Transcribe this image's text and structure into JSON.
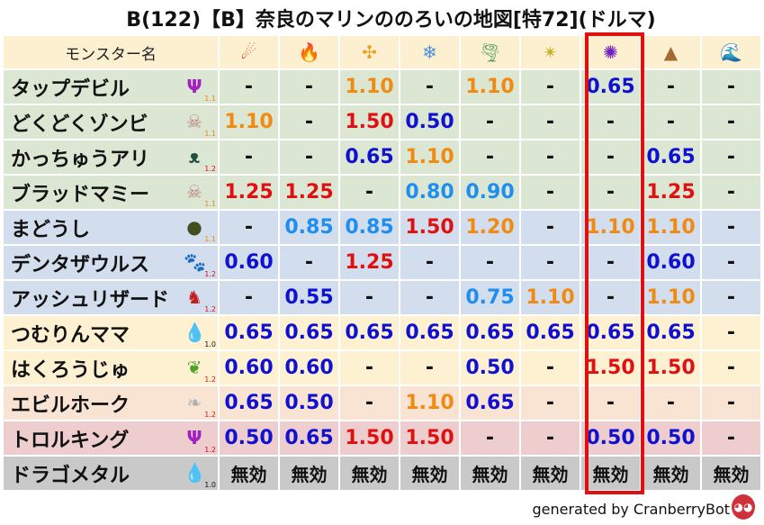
{
  "title": "B(122)【B】奈良のマリンののろいの地図[特72](ドルマ)",
  "header": {
    "name_label": "モンスター名",
    "elements": [
      {
        "icon": "fireball-icon",
        "glyph": "☄",
        "color": "#d83a10"
      },
      {
        "icon": "flame-icon",
        "glyph": "🔥",
        "color": "#e85010"
      },
      {
        "icon": "explosion-icon",
        "glyph": "✣",
        "color": "#f0a020"
      },
      {
        "icon": "ice-icon",
        "glyph": "❄",
        "color": "#4a90e0"
      },
      {
        "icon": "wind-icon",
        "glyph": "🌪",
        "color": "#50a060"
      },
      {
        "icon": "light-icon",
        "glyph": "✴",
        "color": "#c8b020"
      },
      {
        "icon": "dark-icon",
        "glyph": "✺",
        "color": "#7020c0"
      },
      {
        "icon": "earth-icon",
        "glyph": "▲",
        "color": "#a06a30"
      },
      {
        "icon": "water-icon",
        "glyph": "🌊",
        "color": "#2070d0"
      }
    ],
    "highlight_column": 6
  },
  "value_colors": {
    "strong_resist": "#1010d0",
    "resist": "#1e8ef0",
    "weak": "#f08a10",
    "very_weak": "#e01010"
  },
  "rows": [
    {
      "name": "タップデビル",
      "icon": "trident-icon",
      "glyph": "Ψ",
      "icon_color": "#a020c0",
      "badge": "1.1",
      "badge_color": "#f08a10",
      "group": "green",
      "values": [
        "-",
        "-",
        "1.10",
        "-",
        "1.10",
        "-",
        "0.65",
        "-",
        "-"
      ]
    },
    {
      "name": "どくどくゾンビ",
      "icon": "skull-icon",
      "glyph": "☠",
      "icon_color": "#c08080",
      "badge": "1.1",
      "badge_color": "#f08a10",
      "group": "green",
      "values": [
        "1.10",
        "-",
        "1.50",
        "0.50",
        "-",
        "-",
        "-",
        "-",
        "-"
      ]
    },
    {
      "name": "かっちゅうアリ",
      "icon": "insect-icon",
      "glyph": "ᴥ",
      "icon_color": "#205040",
      "badge": "1.2",
      "badge_color": "#e01010",
      "group": "green",
      "values": [
        "-",
        "-",
        "0.65",
        "1.10",
        "-",
        "-",
        "-",
        "0.65",
        "-"
      ]
    },
    {
      "name": "ブラッドマミー",
      "icon": "skull-icon",
      "glyph": "☠",
      "icon_color": "#c08080",
      "badge": "1.1",
      "badge_color": "#f08a10",
      "group": "green",
      "values": [
        "1.25",
        "1.25",
        "-",
        "0.80",
        "0.90",
        "-",
        "-",
        "1.25",
        "-"
      ]
    },
    {
      "name": "まどうし",
      "icon": "hooded-mage-icon",
      "glyph": "●",
      "icon_color": "#405020",
      "badge": "1.1",
      "badge_color": "#f08a10",
      "group": "blue",
      "values": [
        "-",
        "0.85",
        "0.85",
        "1.50",
        "1.20",
        "-",
        "1.10",
        "1.10",
        "-"
      ]
    },
    {
      "name": "デンタザウルス",
      "icon": "paw-icon",
      "glyph": "🐾",
      "icon_color": "#e09020",
      "badge": "1.2",
      "badge_color": "#e01010",
      "group": "blue",
      "values": [
        "0.60",
        "-",
        "1.25",
        "-",
        "-",
        "-",
        "-",
        "0.60",
        "-"
      ]
    },
    {
      "name": "アッシュリザード",
      "icon": "dragon-icon",
      "glyph": "♞",
      "icon_color": "#c02020",
      "badge": "1.2",
      "badge_color": "#e01010",
      "group": "blue",
      "values": [
        "-",
        "0.55",
        "-",
        "-",
        "0.75",
        "1.10",
        "-",
        "1.10",
        "-"
      ]
    },
    {
      "name": "つむりんママ",
      "icon": "slime-icon",
      "glyph": "💧",
      "icon_color": "#3090e0",
      "badge": "1.0",
      "badge_color": "#111111",
      "group": "yellow",
      "values": [
        "0.65",
        "0.65",
        "0.65",
        "0.65",
        "0.65",
        "0.65",
        "0.65",
        "0.65",
        "-"
      ]
    },
    {
      "name": "はくろうじゅ",
      "icon": "leaf-icon",
      "glyph": "❦",
      "icon_color": "#50a030",
      "badge": "1.2",
      "badge_color": "#e01010",
      "group": "yellow",
      "values": [
        "0.60",
        "0.60",
        "-",
        "-",
        "0.50",
        "-",
        "1.50",
        "1.50",
        "-"
      ]
    },
    {
      "name": "エビルホーク",
      "icon": "wing-icon",
      "glyph": "❧",
      "icon_color": "#b0b0b0",
      "badge": "1.2",
      "badge_color": "#e01010",
      "group": "peach",
      "values": [
        "0.65",
        "0.50",
        "-",
        "1.10",
        "0.65",
        "-",
        "-",
        "-",
        "-"
      ]
    },
    {
      "name": "トロルキング",
      "icon": "trident-icon",
      "glyph": "Ψ",
      "icon_color": "#a020c0",
      "badge": "1.2",
      "badge_color": "#e01010",
      "group": "pink",
      "values": [
        "0.50",
        "0.65",
        "1.50",
        "1.50",
        "-",
        "-",
        "0.50",
        "0.50",
        "-"
      ]
    },
    {
      "name": "ドラゴメタル",
      "icon": "slime-icon",
      "glyph": "💧",
      "icon_color": "#3090e0",
      "badge": "1.0",
      "badge_color": "#111111",
      "group": "gray",
      "values": [
        "無効",
        "無効",
        "無効",
        "無効",
        "無効",
        "無効",
        "無効",
        "無効",
        "無効"
      ]
    }
  ],
  "footer": {
    "text": "generated by CranberryBot",
    "icon": "cranberry-bot-icon"
  }
}
